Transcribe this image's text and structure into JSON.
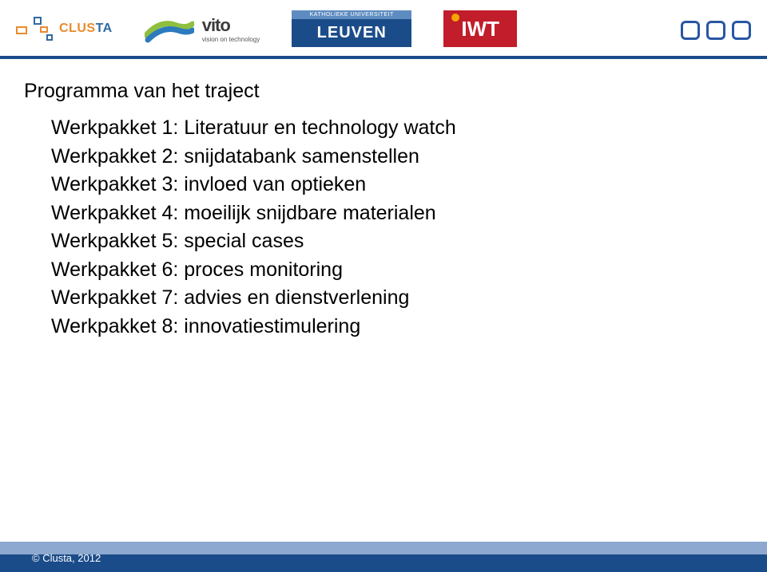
{
  "colors": {
    "clusta_orange": "#e88b2d",
    "clusta_blue": "#2f6aa3",
    "vito_green": "#8fbf3f",
    "vito_blue": "#2b7bbd",
    "leuven_blue": "#1b4c8a",
    "leuven_light": "#5e8cc0",
    "iwt_red": "#c11d2a",
    "iwt_dot": "#f6a500",
    "box_blue": "#2856a3",
    "hr_blue": "#1b4c8a",
    "footer_light": "#8da9cf",
    "footer_dark": "#1b4c8a"
  },
  "logos": {
    "clusta_text": "CLUSTA",
    "vito_text": "vito",
    "vito_sub": "vision on technology",
    "leuven_top": "KATHOLIEKE UNIVERSITEIT",
    "leuven_main": "LEUVEN",
    "iwt_text": "IWT"
  },
  "title": "Programma van het traject",
  "items": [
    "Werkpakket 1: Literatuur en technology watch",
    "Werkpakket 2: snijdatabank samenstellen",
    "Werkpakket 3: invloed van optieken",
    "Werkpakket 4: moeilijk snijdbare materialen",
    "Werkpakket 5: special cases",
    "Werkpakket 6: proces monitoring",
    "Werkpakket 7: advies en dienstverlening",
    "Werkpakket 8: innovatiestimulering"
  ],
  "copyright": "© Clusta, 2012"
}
